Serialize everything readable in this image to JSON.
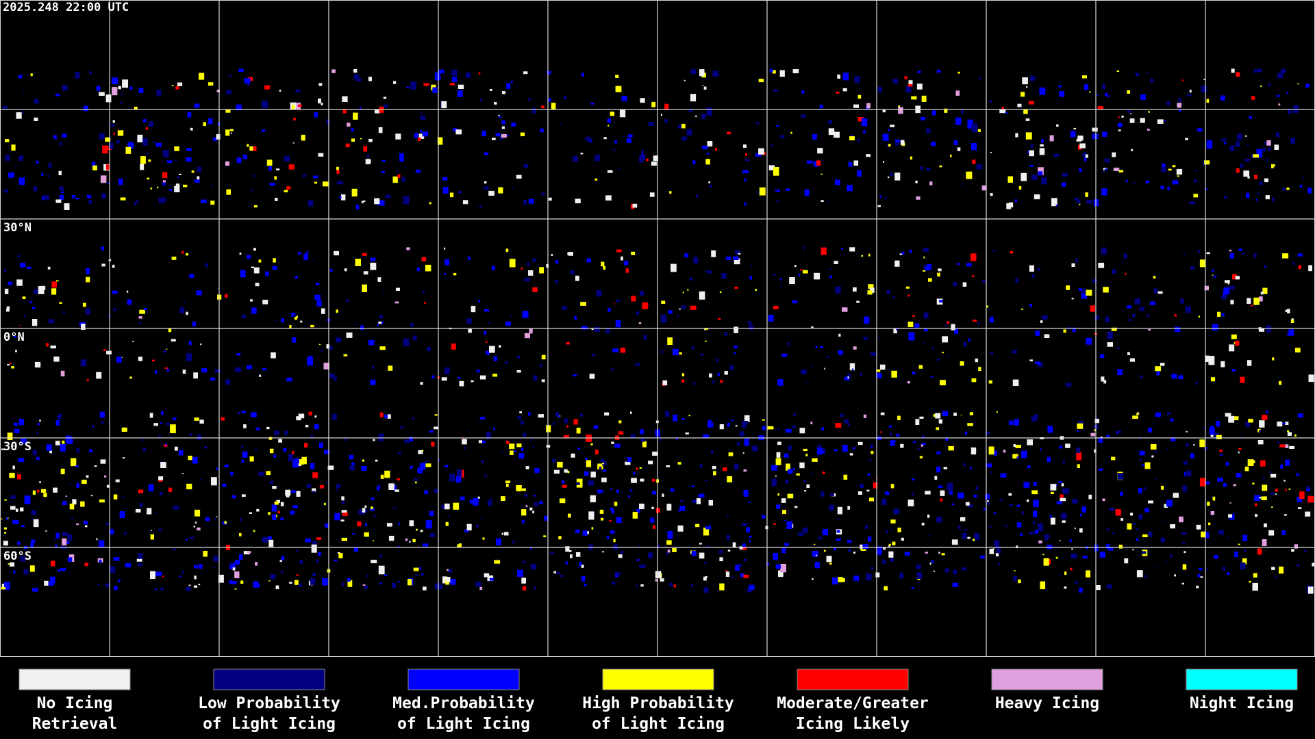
{
  "timestamp": "2025.248 22:00 UTC",
  "lat_labels": [
    "30°N",
    "0°N",
    "30°S",
    "60°S"
  ],
  "legend": [
    {
      "lines": [
        "No Icing",
        "Retrieval"
      ],
      "color": "#f0f0f0"
    },
    {
      "lines": [
        "Low Probability",
        "of Light Icing"
      ],
      "color": "#000080"
    },
    {
      "lines": [
        "Med.Probability",
        "of Light Icing"
      ],
      "color": "#0000ff"
    },
    {
      "lines": [
        "High Probability",
        "of Light Icing"
      ],
      "color": "#ffff00"
    },
    {
      "lines": [
        "Moderate/Greater",
        "Icing Likely"
      ],
      "color": "#ff0000"
    },
    {
      "lines": [
        "Heavy Icing"
      ],
      "color": "#e0a0e0"
    },
    {
      "lines": [
        "Night Icing"
      ],
      "color": "#00ffff"
    }
  ]
}
